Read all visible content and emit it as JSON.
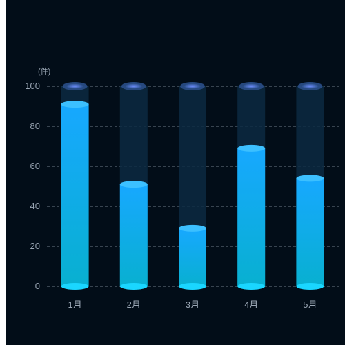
{
  "chart_data": {
    "type": "bar",
    "unit_label": "(件)",
    "categories": [
      "1月",
      "2月",
      "3月",
      "4月",
      "5月"
    ],
    "values": [
      91,
      51,
      29,
      69,
      54
    ],
    "ylim": [
      0,
      100
    ],
    "y_ticks": [
      "0",
      "20",
      "40",
      "60",
      "80",
      "100"
    ],
    "y_tick_values": [
      0,
      20,
      40,
      60,
      80,
      100
    ],
    "grid": "dashed-horizontal",
    "show_background_bars": true,
    "legend": "none"
  },
  "colors": {
    "background": "#020d18",
    "bar_top": "#17a8ff",
    "bar_bottom": "#08b0d0",
    "bar_cap": "#3cc0ff",
    "bar_base": "#1ad6ff",
    "background_bar": "#0c2a42",
    "background_cap_outer": "#2a4f8a",
    "background_cap_inner": "#6f8fff",
    "grid": "#8a97a6",
    "axis_text": "#9aa6b4"
  }
}
